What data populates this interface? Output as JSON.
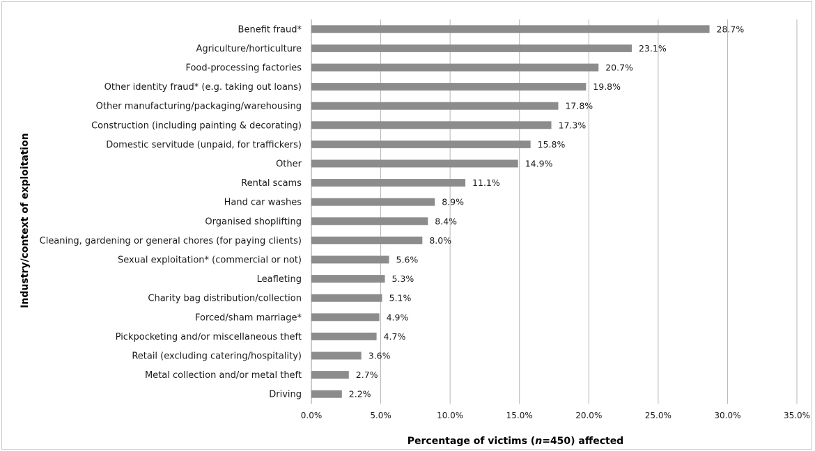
{
  "chart_data": {
    "type": "bar",
    "orientation": "horizontal",
    "title": "",
    "xlabel": {
      "prefix": "Percentage of victims (",
      "italic": "n",
      "suffix": "=450) affected"
    },
    "ylabel": "Industry/context of exploitation",
    "xlim": [
      0,
      35
    ],
    "xticks": [
      "0.0%",
      "5.0%",
      "10.0%",
      "15.0%",
      "20.0%",
      "25.0%",
      "30.0%",
      "35.0%"
    ],
    "grid": "vertical",
    "bar_color": "#8c8c8c",
    "grid_color": "#b5b5b5",
    "categories": [
      "Benefit fraud*",
      "Agriculture/horticulture",
      "Food-processing factories",
      "Other identity fraud* (e.g. taking out loans)",
      "Other manufacturing/packaging/warehousing",
      "Construction (including painting & decorating)",
      "Domestic servitude (unpaid, for traffickers)",
      "Other",
      "Rental scams",
      "Hand car washes",
      "Organised shoplifting",
      "Cleaning, gardening or general chores (for paying clients)",
      "Sexual exploitation* (commercial or not)",
      "Leafleting",
      "Charity bag distribution/collection",
      "Forced/sham marriage*",
      "Pickpocketing and/or miscellaneous theft",
      "Retail (excluding catering/hospitality)",
      "Metal collection and/or metal theft",
      "Driving"
    ],
    "values": [
      28.7,
      23.1,
      20.7,
      19.8,
      17.8,
      17.3,
      15.8,
      14.9,
      11.1,
      8.9,
      8.4,
      8.0,
      5.6,
      5.3,
      5.1,
      4.9,
      4.7,
      3.6,
      2.7,
      2.2
    ],
    "value_labels": [
      "28.7%",
      "23.1%",
      "20.7%",
      "19.8%",
      "17.8%",
      "17.3%",
      "15.8%",
      "14.9%",
      "11.1%",
      "8.9%",
      "8.4%",
      "8.0%",
      "5.6%",
      "5.3%",
      "5.1%",
      "4.9%",
      "4.7%",
      "3.6%",
      "2.7%",
      "2.2%"
    ]
  }
}
